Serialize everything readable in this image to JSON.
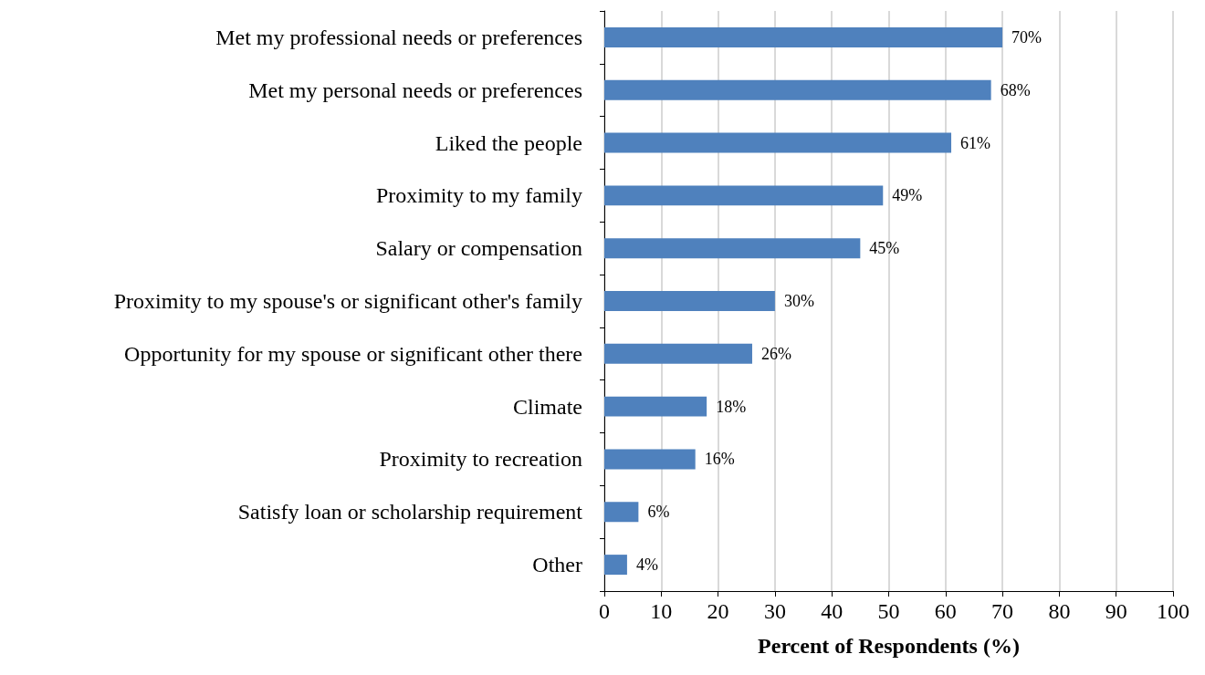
{
  "chart_data": {
    "type": "bar",
    "orientation": "horizontal",
    "xlabel": "Percent of Respondents (%)",
    "categories": [
      "Met my professional needs or preferences",
      "Met my personal needs or preferences",
      "Liked the people",
      "Proximity to my family",
      "Salary or compensation",
      "Proximity to my spouse's or significant other's family",
      "Opportunity for my spouse or significant other there",
      "Climate",
      "Proximity to recreation",
      "Satisfy loan or scholarship requirement",
      "Other"
    ],
    "values": [
      70,
      68,
      61,
      49,
      45,
      30,
      26,
      18,
      16,
      6,
      4
    ],
    "value_labels": [
      "70%",
      "68%",
      "61%",
      "49%",
      "45%",
      "30%",
      "26%",
      "18%",
      "16%",
      "6%",
      "4%"
    ],
    "color": "#4f81bd",
    "xlim": [
      0,
      100
    ],
    "xticks": [
      0,
      10,
      20,
      30,
      40,
      50,
      60,
      70,
      80,
      90,
      100
    ],
    "grid": "x"
  }
}
